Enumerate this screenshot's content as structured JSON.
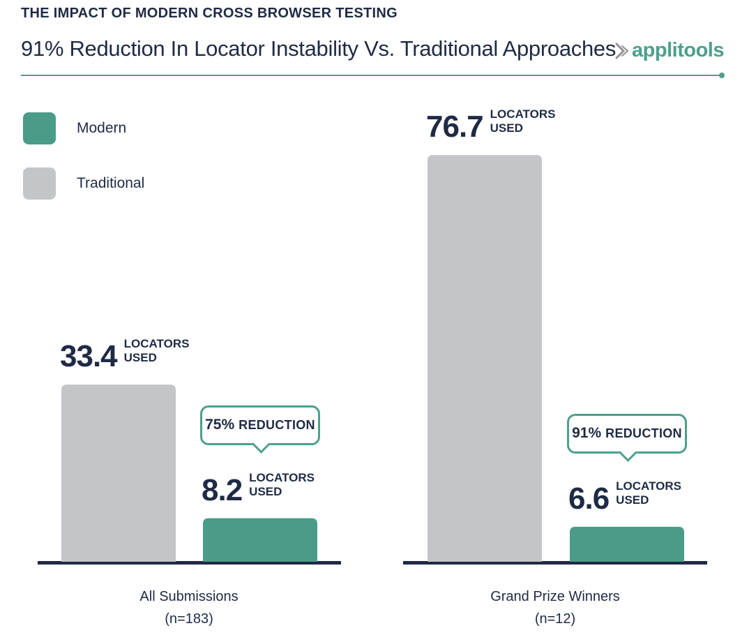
{
  "header": {
    "kicker": "THE IMPACT OF MODERN CROSS BROWSER TESTING",
    "title": "91% Reduction In Locator Instability Vs. Traditional Approaches",
    "brand": "applitools"
  },
  "colors": {
    "modern": "#4a9c89",
    "traditional": "#c4c5c9",
    "text": "#1f2a44",
    "accent": "#4ca08b"
  },
  "legend": {
    "items": [
      {
        "label": "Modern",
        "color": "#4a9c89"
      },
      {
        "label": "Traditional",
        "color": "#c4c5c9"
      }
    ]
  },
  "unit_label": "LOCATORS\nUSED",
  "reduction_word": "REDUCTION",
  "chart_data": {
    "type": "bar",
    "title": "91% Reduction In Locator Instability Vs. Traditional Approaches",
    "ylabel": "",
    "xlabel": "",
    "ylim": [
      0,
      80
    ],
    "grid": false,
    "legend_position": "top-left",
    "categories": [
      "All Submissions",
      "Grand Prize Winners"
    ],
    "category_notes": [
      "(n=183)",
      "(n=12)"
    ],
    "series": [
      {
        "name": "Traditional",
        "values": [
          33.4,
          76.7
        ]
      },
      {
        "name": "Modern",
        "values": [
          8.2,
          6.6
        ]
      }
    ],
    "annotations": [
      "75%",
      "91%"
    ]
  }
}
